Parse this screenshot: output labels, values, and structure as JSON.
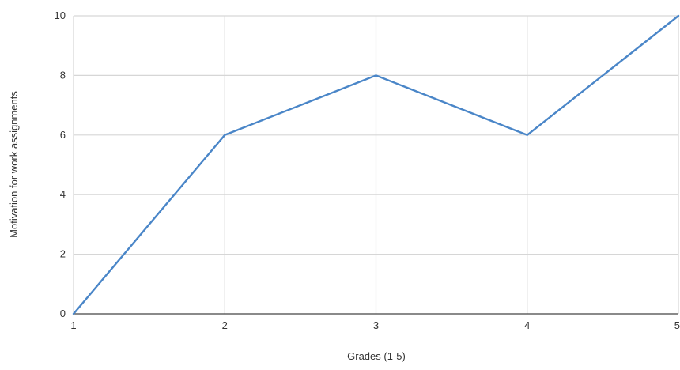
{
  "chart_data": {
    "type": "line",
    "title": "",
    "xlabel": "Grades  (1-5)",
    "ylabel": "Motivation for work assignments",
    "x": [
      1,
      2,
      3,
      4,
      5
    ],
    "x_tick_labels": [
      "1",
      "2",
      "3",
      "4",
      "5"
    ],
    "y_tick_labels": [
      "0",
      "2",
      "4",
      "6",
      "8",
      "10"
    ],
    "xlim": [
      1,
      5
    ],
    "ylim": [
      0,
      10
    ],
    "grid": true,
    "legend": "none",
    "series": [
      {
        "values": [
          0,
          6,
          8,
          6,
          10
        ],
        "color": "#4a86c8"
      }
    ],
    "colors": {
      "grid": "#d6d6d6",
      "axis": "#444444",
      "text": "#333333"
    }
  }
}
